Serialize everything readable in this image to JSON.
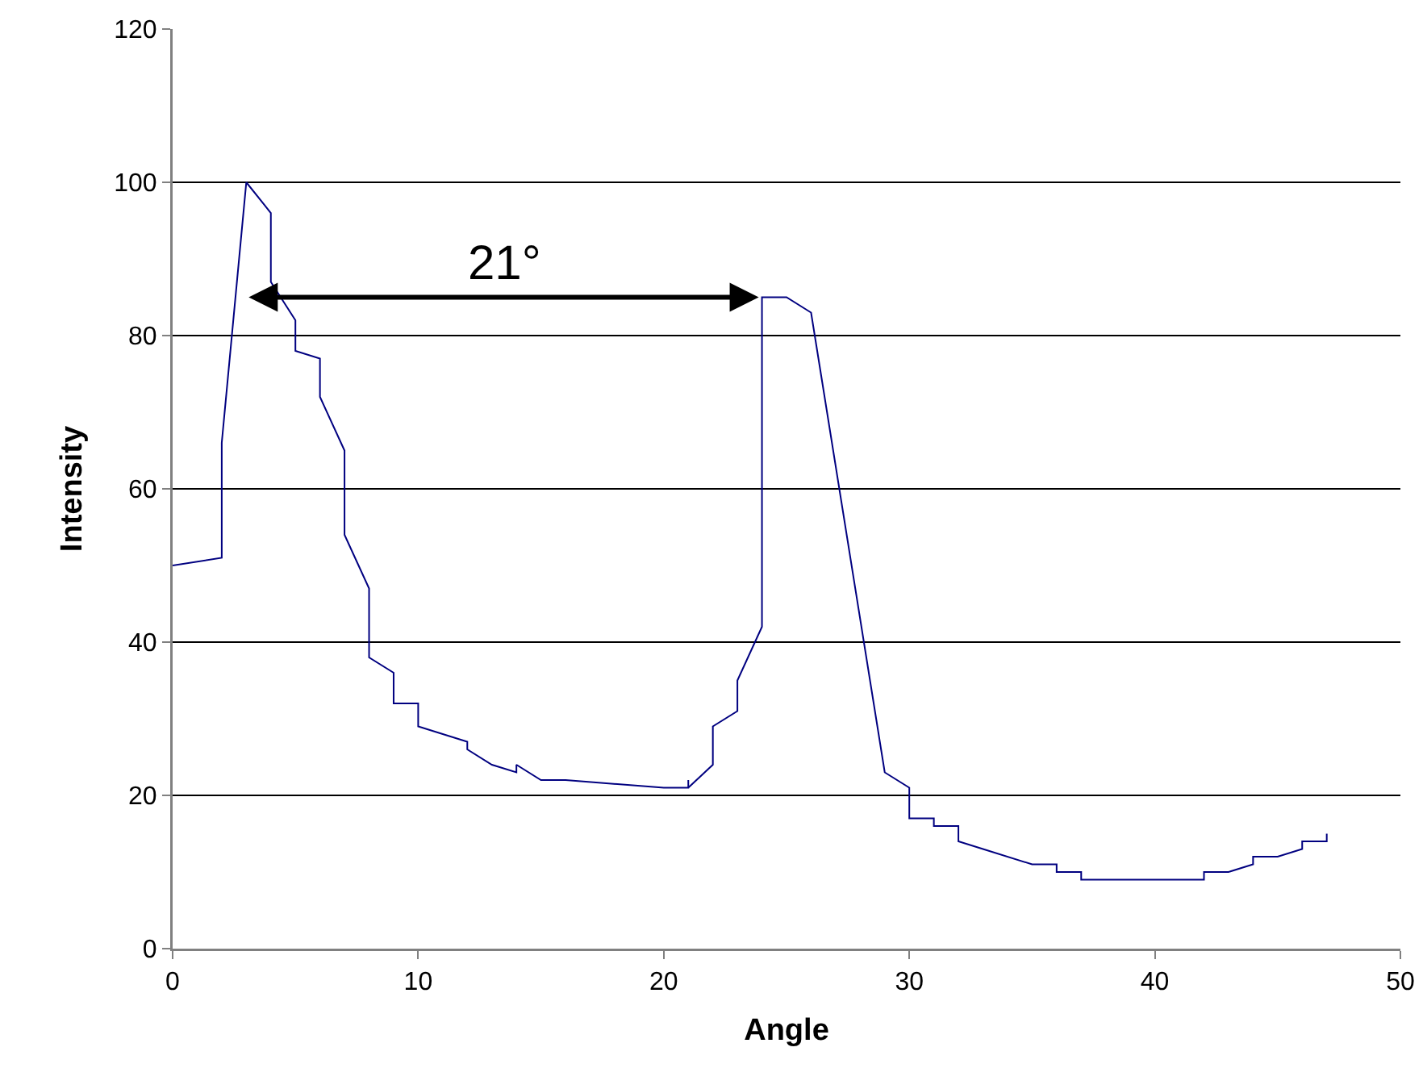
{
  "chart_data": {
    "type": "line",
    "xlabel": "Angle",
    "ylabel": "Intensity",
    "x": [
      0,
      2,
      2,
      3,
      4,
      4,
      5,
      5,
      6,
      6,
      7,
      7,
      8,
      8,
      9,
      9,
      10,
      10,
      11,
      12,
      12,
      13,
      14,
      14,
      15,
      16,
      20,
      21,
      21,
      21,
      22,
      22,
      23,
      23,
      24,
      24,
      25,
      26,
      29,
      30,
      30,
      31,
      31,
      32,
      32,
      33,
      35,
      36,
      36,
      37,
      37,
      42,
      42,
      43,
      44,
      44,
      45,
      46,
      46,
      47,
      47
    ],
    "series": [
      {
        "color": "#000080",
        "values": [
          50,
          51,
          66,
          100,
          96,
          87,
          82,
          78,
          77,
          72,
          65,
          54,
          47,
          38,
          36,
          32,
          32,
          29,
          28,
          27,
          26,
          24,
          23,
          24,
          22,
          22,
          21,
          21,
          22,
          21,
          24,
          29,
          31,
          35,
          42,
          85,
          85,
          83,
          23,
          21,
          17,
          17,
          16,
          16,
          14,
          13,
          11,
          11,
          10,
          10,
          9,
          9,
          10,
          10,
          11,
          12,
          12,
          13,
          14,
          14,
          15
        ]
      }
    ],
    "xlim": [
      0,
      50
    ],
    "xticks": [
      0,
      10,
      20,
      30,
      40,
      50
    ],
    "ylim": [
      0,
      120
    ],
    "yticks": [
      0,
      20,
      40,
      60,
      80,
      100,
      120
    ],
    "grid": "y",
    "marker": "none",
    "line_style": "solid",
    "annotations": [
      "21°"
    ]
  }
}
